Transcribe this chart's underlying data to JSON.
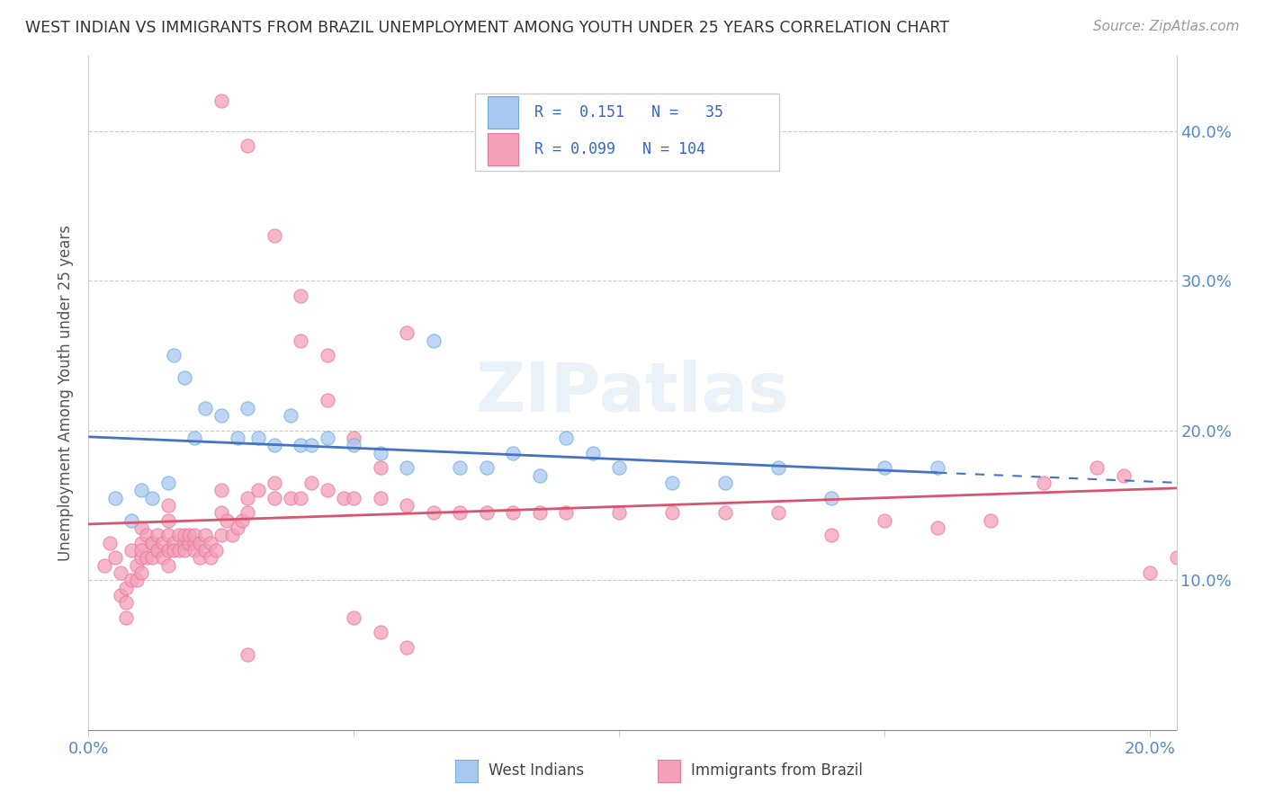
{
  "title": "WEST INDIAN VS IMMIGRANTS FROM BRAZIL UNEMPLOYMENT AMONG YOUTH UNDER 25 YEARS CORRELATION CHART",
  "source": "Source: ZipAtlas.com",
  "ylabel": "Unemployment Among Youth under 25 years",
  "xlim": [
    0.0,
    0.205
  ],
  "ylim": [
    0.0,
    0.45
  ],
  "xtick_vals": [
    0.0,
    0.05,
    0.1,
    0.15,
    0.2
  ],
  "xtick_labels": [
    "0.0%",
    "",
    "",
    "",
    "20.0%"
  ],
  "ytick_vals": [
    0.1,
    0.2,
    0.3,
    0.4
  ],
  "ytick_labels": [
    "10.0%",
    "20.0%",
    "30.0%",
    "40.0%"
  ],
  "west_indian_R": 0.151,
  "west_indian_N": 35,
  "brazil_R": 0.099,
  "brazil_N": 104,
  "west_indian_color": "#a8c8f0",
  "west_indian_edge": "#6aaee0",
  "brazil_color": "#f4a0b8",
  "brazil_edge": "#e878a0",
  "west_indian_line_color": "#4472c4",
  "brazil_line_color": "#d9546e",
  "watermark_text": "ZIPatlas",
  "legend_R1": "R =  0.151   N =   35",
  "legend_R2": "R = 0.099   N = 104",
  "west_indian_x": [
    0.005,
    0.008,
    0.01,
    0.012,
    0.015,
    0.016,
    0.018,
    0.02,
    0.022,
    0.025,
    0.028,
    0.03,
    0.032,
    0.035,
    0.038,
    0.04,
    0.042,
    0.045,
    0.05,
    0.055,
    0.06,
    0.065,
    0.07,
    0.075,
    0.08,
    0.085,
    0.09,
    0.095,
    0.1,
    0.11,
    0.12,
    0.13,
    0.14,
    0.15,
    0.16
  ],
  "west_indian_y": [
    0.155,
    0.14,
    0.16,
    0.155,
    0.165,
    0.25,
    0.235,
    0.195,
    0.215,
    0.21,
    0.195,
    0.215,
    0.195,
    0.19,
    0.21,
    0.19,
    0.19,
    0.195,
    0.19,
    0.185,
    0.175,
    0.26,
    0.175,
    0.175,
    0.185,
    0.17,
    0.195,
    0.185,
    0.175,
    0.165,
    0.165,
    0.175,
    0.155,
    0.175,
    0.175
  ],
  "brazil_x": [
    0.003,
    0.004,
    0.005,
    0.006,
    0.006,
    0.007,
    0.007,
    0.007,
    0.008,
    0.008,
    0.009,
    0.009,
    0.01,
    0.01,
    0.01,
    0.01,
    0.01,
    0.011,
    0.011,
    0.012,
    0.012,
    0.012,
    0.013,
    0.013,
    0.013,
    0.014,
    0.014,
    0.015,
    0.015,
    0.015,
    0.015,
    0.015,
    0.016,
    0.016,
    0.017,
    0.017,
    0.018,
    0.018,
    0.018,
    0.019,
    0.019,
    0.02,
    0.02,
    0.02,
    0.021,
    0.021,
    0.022,
    0.022,
    0.023,
    0.023,
    0.024,
    0.025,
    0.025,
    0.025,
    0.026,
    0.027,
    0.028,
    0.029,
    0.03,
    0.03,
    0.032,
    0.035,
    0.035,
    0.038,
    0.04,
    0.042,
    0.045,
    0.048,
    0.05,
    0.055,
    0.06,
    0.065,
    0.07,
    0.075,
    0.08,
    0.085,
    0.09,
    0.1,
    0.11,
    0.12,
    0.13,
    0.14,
    0.15,
    0.16,
    0.17,
    0.18,
    0.19,
    0.195,
    0.2,
    0.205,
    0.04,
    0.045,
    0.05,
    0.055,
    0.06,
    0.025,
    0.03,
    0.035,
    0.04,
    0.045,
    0.05,
    0.055,
    0.06,
    0.03
  ],
  "brazil_y": [
    0.11,
    0.125,
    0.115,
    0.105,
    0.09,
    0.085,
    0.095,
    0.075,
    0.1,
    0.12,
    0.11,
    0.1,
    0.105,
    0.115,
    0.125,
    0.135,
    0.12,
    0.115,
    0.13,
    0.125,
    0.115,
    0.125,
    0.12,
    0.13,
    0.12,
    0.115,
    0.125,
    0.12,
    0.11,
    0.13,
    0.14,
    0.15,
    0.125,
    0.12,
    0.13,
    0.12,
    0.125,
    0.13,
    0.12,
    0.125,
    0.13,
    0.125,
    0.12,
    0.13,
    0.125,
    0.115,
    0.13,
    0.12,
    0.125,
    0.115,
    0.12,
    0.13,
    0.145,
    0.16,
    0.14,
    0.13,
    0.135,
    0.14,
    0.145,
    0.155,
    0.16,
    0.155,
    0.165,
    0.155,
    0.155,
    0.165,
    0.16,
    0.155,
    0.155,
    0.155,
    0.15,
    0.145,
    0.145,
    0.145,
    0.145,
    0.145,
    0.145,
    0.145,
    0.145,
    0.145,
    0.145,
    0.13,
    0.14,
    0.135,
    0.14,
    0.165,
    0.175,
    0.17,
    0.105,
    0.115,
    0.26,
    0.25,
    0.195,
    0.175,
    0.265,
    0.42,
    0.39,
    0.33,
    0.29,
    0.22,
    0.075,
    0.065,
    0.055,
    0.05
  ]
}
